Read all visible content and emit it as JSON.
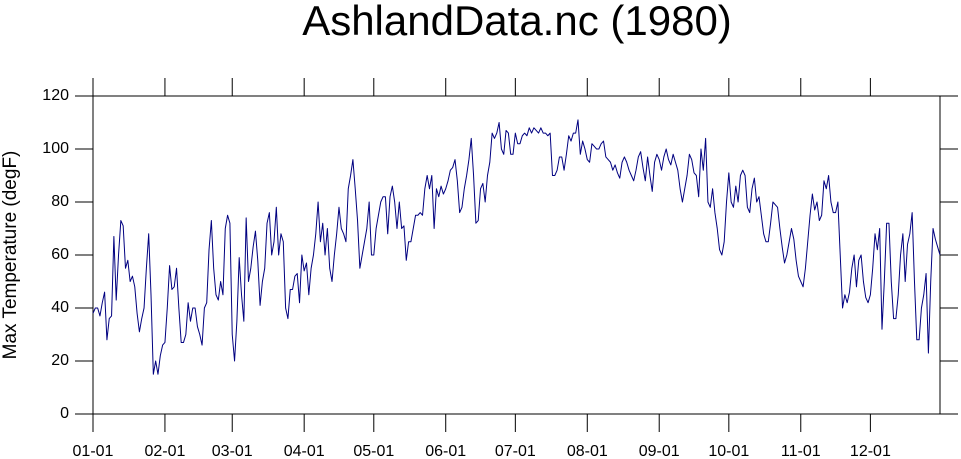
{
  "chart_data": {
    "type": "line",
    "title": "AshlandData.nc (1980)",
    "ylabel": "Max Temperature (degF)",
    "color": "#000080",
    "x": [
      0,
      1,
      2,
      3,
      4,
      5,
      6,
      7,
      8,
      9,
      10,
      11,
      12,
      13,
      14,
      15,
      16,
      17,
      18,
      19,
      20,
      21,
      22,
      23,
      24,
      25,
      26,
      27,
      28,
      29,
      30,
      31,
      32,
      33,
      34,
      35,
      36,
      37,
      38,
      39,
      40,
      41,
      42,
      43,
      44,
      45,
      46,
      47,
      48,
      49,
      50,
      51,
      52,
      53,
      54,
      55,
      56,
      57,
      58,
      59,
      60,
      61,
      62,
      63,
      64,
      65,
      66,
      67,
      68,
      69,
      70,
      71,
      72,
      73,
      74,
      75,
      76,
      77,
      78,
      79,
      80,
      81,
      82,
      83,
      84,
      85,
      86,
      87,
      88,
      89,
      90,
      91,
      92,
      93,
      94,
      95,
      96,
      97,
      98,
      99,
      100,
      101,
      102,
      103,
      104,
      105,
      106,
      107,
      108,
      109,
      110,
      111,
      112,
      113,
      114,
      115,
      116,
      117,
      118,
      119,
      120,
      121,
      122,
      123,
      124,
      125,
      126,
      127,
      128,
      129,
      130,
      131,
      132,
      133,
      134,
      135,
      136,
      137,
      138,
      139,
      140,
      141,
      142,
      143,
      144,
      145,
      146,
      147,
      148,
      149,
      150,
      151,
      152,
      153,
      154,
      155,
      156,
      157,
      158,
      159,
      160,
      161,
      162,
      163,
      164,
      165,
      166,
      167,
      168,
      169,
      170,
      171,
      172,
      173,
      174,
      175,
      176,
      177,
      178,
      179,
      180,
      181,
      182,
      183,
      184,
      185,
      186,
      187,
      188,
      189,
      190,
      191,
      192,
      193,
      194,
      195,
      196,
      197,
      198,
      199,
      200,
      201,
      202,
      203,
      204,
      205,
      206,
      207,
      208,
      209,
      210,
      211,
      212,
      213,
      214,
      215,
      216,
      217,
      218,
      219,
      220,
      221,
      222,
      223,
      224,
      225,
      226,
      227,
      228,
      229,
      230,
      231,
      232,
      233,
      234,
      235,
      236,
      237,
      238,
      239,
      240,
      241,
      242,
      243,
      244,
      245,
      246,
      247,
      248,
      249,
      250,
      251,
      252,
      253,
      254,
      255,
      256,
      257,
      258,
      259,
      260,
      261,
      262,
      263,
      264,
      265,
      266,
      267,
      268,
      269,
      270,
      271,
      272,
      273,
      274,
      275,
      276,
      277,
      278,
      279,
      280,
      281,
      282,
      283,
      284,
      285,
      286,
      287,
      288,
      289,
      290,
      291,
      292,
      293,
      294,
      295,
      296,
      297,
      298,
      299,
      300,
      301,
      302,
      303,
      304,
      305,
      306,
      307,
      308,
      309,
      310,
      311,
      312,
      313,
      314,
      315,
      316,
      317,
      318,
      319,
      320,
      321,
      322,
      323,
      324,
      325,
      326,
      327,
      328,
      329,
      330,
      331,
      332,
      333,
      334,
      335,
      336,
      337,
      338,
      339,
      340,
      341,
      342,
      343,
      344,
      345,
      346,
      347,
      348,
      349,
      350,
      351,
      352,
      353,
      354,
      355,
      356,
      357,
      358,
      359,
      360,
      361,
      362,
      363,
      364,
      365
    ],
    "values": [
      38,
      40,
      40,
      37,
      42,
      46,
      28,
      36,
      37,
      67,
      43,
      60,
      73,
      71,
      55,
      58,
      50,
      52,
      48,
      38,
      31,
      36,
      40,
      55,
      68,
      45,
      15,
      20,
      15,
      22,
      26,
      27,
      40,
      56,
      47,
      48,
      55,
      40,
      27,
      27,
      30,
      42,
      35,
      40,
      40,
      33,
      30,
      26,
      40,
      42,
      62,
      73,
      55,
      45,
      43,
      50,
      45,
      70,
      75,
      72,
      30,
      20,
      35,
      59,
      45,
      35,
      74,
      50,
      55,
      63,
      69,
      58,
      41,
      50,
      55,
      72,
      76,
      60,
      65,
      78,
      60,
      68,
      65,
      40,
      36,
      47,
      47,
      52,
      53,
      42,
      60,
      54,
      57,
      45,
      55,
      60,
      68,
      80,
      65,
      72,
      60,
      70,
      55,
      50,
      60,
      68,
      78,
      70,
      68,
      65,
      85,
      90,
      96,
      85,
      73,
      55,
      60,
      65,
      70,
      80,
      60,
      60,
      70,
      75,
      80,
      82,
      82,
      68,
      82,
      86,
      80,
      70,
      80,
      70,
      71,
      58,
      65,
      65,
      70,
      75,
      75,
      76,
      75,
      85,
      90,
      85,
      90,
      70,
      85,
      82,
      86,
      83,
      85,
      88,
      92,
      93,
      96,
      88,
      76,
      78,
      85,
      90,
      96,
      104,
      90,
      72,
      73,
      85,
      87,
      80,
      90,
      95,
      106,
      104,
      106,
      110,
      100,
      98,
      107,
      106,
      98,
      98,
      106,
      102,
      102,
      105,
      106,
      105,
      108,
      106,
      108,
      107,
      106,
      108,
      106,
      106,
      105,
      106,
      90,
      90,
      92,
      97,
      97,
      92,
      98,
      105,
      103,
      106,
      106,
      111,
      98,
      103,
      100,
      96,
      95,
      102,
      101,
      100,
      100,
      102,
      103,
      97,
      96,
      95,
      92,
      94,
      91,
      89,
      95,
      97,
      95,
      92,
      90,
      88,
      92,
      97,
      99,
      93,
      88,
      97,
      90,
      84,
      95,
      98,
      96,
      92,
      97,
      100,
      96,
      94,
      98,
      95,
      92,
      85,
      80,
      85,
      90,
      98,
      96,
      91,
      90,
      82,
      100,
      92,
      104,
      80,
      78,
      85,
      76,
      70,
      62,
      60,
      65,
      80,
      91,
      80,
      78,
      86,
      80,
      90,
      92,
      90,
      78,
      76,
      85,
      89,
      80,
      82,
      75,
      68,
      65,
      65,
      72,
      80,
      79,
      78,
      70,
      63,
      57,
      60,
      65,
      70,
      66,
      58,
      52,
      50,
      48,
      55,
      65,
      75,
      83,
      77,
      80,
      73,
      75,
      88,
      85,
      90,
      80,
      76,
      76,
      80,
      60,
      40,
      45,
      42,
      46,
      55,
      60,
      48,
      58,
      60,
      50,
      44,
      42,
      45,
      55,
      68,
      62,
      70,
      32,
      50,
      72,
      72,
      50,
      36,
      36,
      45,
      60,
      68,
      50,
      64,
      68,
      76,
      50,
      28,
      28,
      40,
      45,
      53,
      23,
      50,
      70,
      66,
      63,
      60
    ],
    "xlim": [
      0,
      365
    ],
    "xticks": [
      {
        "value": 0,
        "label": "01-01"
      },
      {
        "value": 31,
        "label": "02-01"
      },
      {
        "value": 60,
        "label": "03-01"
      },
      {
        "value": 91,
        "label": "04-01"
      },
      {
        "value": 121,
        "label": "05-01"
      },
      {
        "value": 152,
        "label": "06-01"
      },
      {
        "value": 182,
        "label": "07-01"
      },
      {
        "value": 213,
        "label": "08-01"
      },
      {
        "value": 244,
        "label": "09-01"
      },
      {
        "value": 274,
        "label": "10-01"
      },
      {
        "value": 305,
        "label": "11-01"
      },
      {
        "value": 335,
        "label": "12-01"
      }
    ],
    "ylim": [
      0,
      120
    ],
    "yticks": [
      0,
      20,
      40,
      60,
      80,
      100,
      120
    ]
  }
}
